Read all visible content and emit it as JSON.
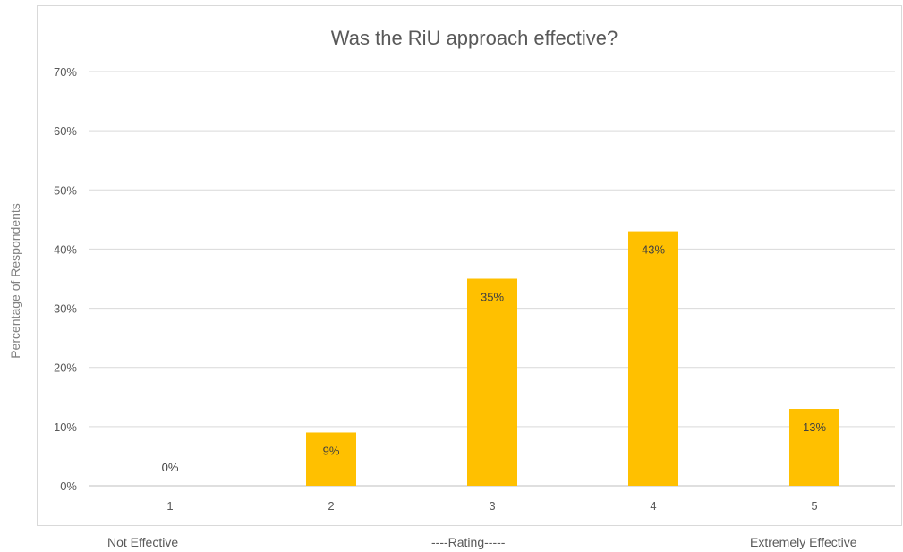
{
  "chart_data": {
    "type": "bar",
    "title": "Was the RiU approach effective?",
    "ylabel": "Percentage of Respondents",
    "xlabel": "----Rating-----",
    "categories": [
      "1",
      "2",
      "3",
      "4",
      "5"
    ],
    "values": [
      0,
      9,
      35,
      43,
      13
    ],
    "data_labels": [
      "0%",
      "9%",
      "35%",
      "43%",
      "13%"
    ],
    "ylim": [
      0,
      70
    ],
    "yticks": [
      "0%",
      "10%",
      "20%",
      "30%",
      "40%",
      "50%",
      "60%",
      "70%"
    ],
    "bar_color": "#FFC000",
    "grid": true,
    "legend": "none"
  },
  "captions": {
    "left": "Not Effective",
    "right": "Extremely Effective"
  }
}
